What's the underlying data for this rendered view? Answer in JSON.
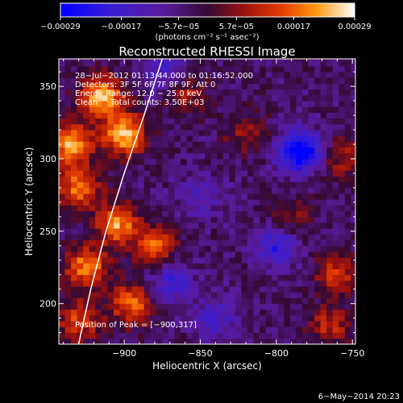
{
  "chart_data": {
    "type": "heatmap",
    "title": "Reconstructed RHESSI Image",
    "xlabel": "Heliocentric X (arcsec)",
    "ylabel": "Heliocentric Y (arcsec)",
    "xlim": [
      -943,
      -748
    ],
    "ylim": [
      172,
      369
    ],
    "x_ticks": [
      -900,
      -850,
      -800,
      -750
    ],
    "y_ticks": [
      200,
      250,
      300,
      350
    ],
    "x_tick_labels": [
      "−900",
      "−850",
      "−800",
      "−750"
    ],
    "y_tick_labels": [
      "200",
      "250",
      "300",
      "350"
    ],
    "colorbar": {
      "range": [
        -0.00029,
        0.00029
      ],
      "ticks": [
        -0.00029,
        -0.00017,
        -5.7e-05,
        5.7e-05,
        0.00017,
        0.00029
      ],
      "tick_labels": [
        "−0.00029",
        "−0.00017",
        "−5.7e−05",
        "5.7e−05",
        "0.00017",
        "0.00029"
      ],
      "unit_label": "(photons cm⁻² s⁻¹ asec⁻²)"
    },
    "annotations": [
      "28−Jul−2012 01:13:44.000 to 01:16:52.000",
      "Detectors: 3F 5F 6F 7F 8F 9F, Att 0",
      "Energy Range: 12.0 − 25.0 keV",
      "Clean     Total counts: 3.50E+03"
    ],
    "peak_label": "Position of Peak = [−900,317]",
    "peak": [
      -900,
      317
    ],
    "limb_curve": [
      [
        -930,
        172
      ],
      [
        -922,
        210
      ],
      [
        -912,
        250
      ],
      [
        -900,
        290
      ],
      [
        -887,
        330
      ],
      [
        -875,
        369
      ]
    ],
    "sources": [
      {
        "x": -935,
        "y": 310,
        "value": 0.00026
      },
      {
        "x": -915,
        "y": 343,
        "value": 0.00029
      },
      {
        "x": -900,
        "y": 317,
        "value": 0.00029
      },
      {
        "x": -930,
        "y": 280,
        "value": 0.00022
      },
      {
        "x": -905,
        "y": 255,
        "value": 0.00025
      },
      {
        "x": -880,
        "y": 240,
        "value": 0.0002
      },
      {
        "x": -925,
        "y": 225,
        "value": 0.00024
      },
      {
        "x": -895,
        "y": 200,
        "value": 0.00022
      },
      {
        "x": -930,
        "y": 188,
        "value": 0.00018
      },
      {
        "x": -860,
        "y": 345,
        "value": 0.00012
      },
      {
        "x": -820,
        "y": 318,
        "value": 0.0001
      },
      {
        "x": -790,
        "y": 260,
        "value": 0.0001
      },
      {
        "x": -760,
        "y": 220,
        "value": 0.00016
      },
      {
        "x": -755,
        "y": 300,
        "value": 0.00012
      },
      {
        "x": -765,
        "y": 185,
        "value": 0.00014
      }
    ],
    "sinks": [
      {
        "x": -785,
        "y": 305,
        "value": -0.00029
      },
      {
        "x": -800,
        "y": 240,
        "value": -0.00017
      },
      {
        "x": -870,
        "y": 215,
        "value": -0.00014
      },
      {
        "x": -840,
        "y": 190,
        "value": -0.00012
      },
      {
        "x": -850,
        "y": 275,
        "value": -0.0001
      },
      {
        "x": -875,
        "y": 360,
        "value": -0.00012
      }
    ],
    "grid": false
  },
  "footer": {
    "timestamp": "6−May−2014 20:23"
  }
}
